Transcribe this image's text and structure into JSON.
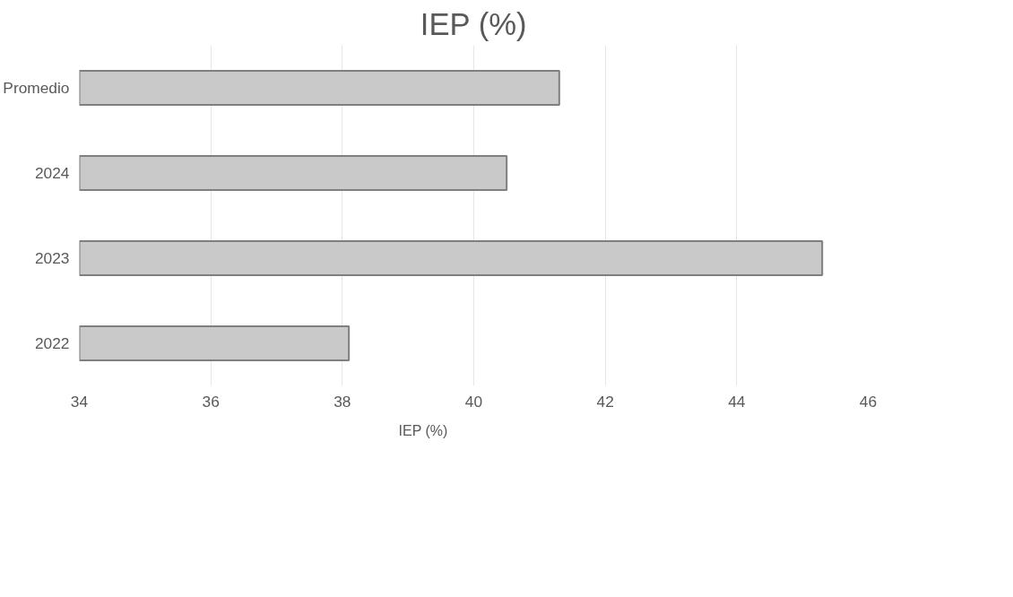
{
  "chart_data": {
    "type": "bar",
    "orientation": "horizontal",
    "title": "IEP (%)",
    "categories": [
      "Promedio",
      "2024",
      "2023",
      "2022"
    ],
    "series": [
      {
        "name": "IEP (%)",
        "color": "#c9c9c9",
        "values": [
          41.3,
          40.5,
          45.3,
          38.1
        ]
      }
    ],
    "xlim": [
      34,
      46
    ],
    "xticks": [
      34,
      36,
      38,
      40,
      42,
      44,
      46
    ],
    "grid": "x",
    "legend": "bottom"
  }
}
